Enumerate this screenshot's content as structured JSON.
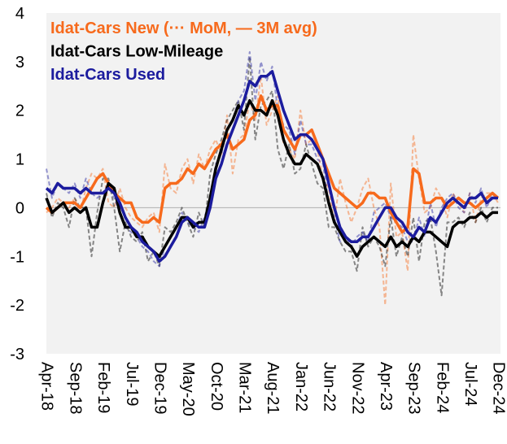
{
  "chart_data": {
    "type": "line",
    "categories": [
      "Apr-18",
      null,
      null,
      null,
      null,
      "Sep-18",
      null,
      null,
      null,
      null,
      "Feb-19",
      null,
      null,
      null,
      null,
      "Jul-19",
      null,
      null,
      null,
      null,
      "Dec-19",
      null,
      null,
      null,
      null,
      "May-20",
      null,
      null,
      null,
      null,
      "Oct-20",
      null,
      null,
      null,
      null,
      "Mar-21",
      null,
      null,
      null,
      null,
      "Aug-21",
      null,
      null,
      null,
      null,
      "Jan-22",
      null,
      null,
      null,
      null,
      "Jun-22",
      null,
      null,
      null,
      null,
      "Nov-22",
      null,
      null,
      null,
      null,
      "Apr-23",
      null,
      null,
      null,
      null,
      "Sep-23",
      null,
      null,
      null,
      null,
      "Feb-24",
      null,
      null,
      null,
      null,
      "Jul-24",
      null,
      null,
      null,
      null,
      "Dec-24"
    ],
    "series": [
      {
        "name": "Idat-Cars New (··· MoM, — 3M avg)",
        "color": "#f76a1c",
        "values": [
          0.0,
          -0.1,
          0.0,
          0.1,
          0.1,
          0.1,
          0.0,
          0.2,
          0.4,
          0.6,
          0.7,
          0.5,
          0.3,
          0.2,
          0.1,
          0.1,
          -0.2,
          -0.3,
          -0.3,
          -0.2,
          -0.3,
          0.4,
          0.5,
          0.5,
          0.6,
          0.8,
          0.7,
          0.9,
          0.8,
          1.0,
          1.2,
          1.3,
          1.5,
          1.2,
          1.3,
          1.4,
          1.8,
          1.9,
          2.3,
          2.0,
          2.1,
          2.1,
          1.6,
          1.4,
          1.2,
          1.5,
          1.5,
          1.6,
          1.3,
          1.0,
          0.7,
          0.4,
          0.3,
          0.2,
          0.1,
          0.0,
          0.1,
          0.3,
          0.3,
          0.2,
          0.2,
          -0.1,
          -0.3,
          -0.5,
          -0.4,
          0.8,
          0.7,
          0.1,
          0.1,
          0.2,
          0.2,
          0.0,
          0.1,
          0.2,
          0.1,
          0.1,
          0.0,
          0.1,
          0.2,
          0.3,
          0.2
        ],
        "mom": [
          -0.1,
          0.0,
          0.2,
          0.1,
          0.0,
          0.2,
          -0.1,
          0.4,
          0.7,
          0.6,
          0.8,
          0.1,
          0.0,
          0.4,
          0.0,
          -0.2,
          -0.3,
          -0.4,
          -0.2,
          -0.1,
          -0.5,
          0.9,
          0.4,
          0.3,
          0.8,
          1.0,
          0.5,
          1.1,
          0.8,
          1.2,
          1.4,
          1.1,
          1.9,
          0.7,
          1.4,
          1.5,
          2.2,
          1.8,
          2.7,
          1.7,
          2.0,
          2.3,
          1.3,
          1.2,
          1.0,
          2.0,
          1.3,
          1.4,
          1.2,
          0.6,
          0.4,
          -0.3,
          0.6,
          0.1,
          -0.3,
          0.0,
          0.4,
          0.6,
          0.0,
          -0.4,
          -2.0,
          0.5,
          -0.6,
          -0.5,
          -1.3,
          1.5,
          0.6,
          -0.1,
          0.0,
          0.4,
          0.2,
          -0.2,
          0.3,
          0.1,
          -0.1,
          0.3,
          -0.3,
          0.2,
          0.3,
          0.3,
          0.1
        ]
      },
      {
        "name": "Idat-Cars Low-Mileage",
        "color": "#000000",
        "values": [
          0.2,
          -0.1,
          0.0,
          0.1,
          -0.1,
          0.0,
          -0.1,
          0.0,
          -0.4,
          -0.4,
          0.1,
          0.5,
          0.4,
          -0.1,
          -0.4,
          -0.4,
          -0.6,
          -0.6,
          -0.8,
          -0.9,
          -1.0,
          -0.8,
          -0.6,
          -0.4,
          -0.2,
          -0.2,
          -0.4,
          -0.3,
          -0.3,
          0.2,
          0.8,
          1.2,
          1.6,
          1.8,
          2.1,
          1.9,
          2.2,
          2.0,
          2.0,
          1.9,
          2.2,
          1.9,
          1.4,
          1.1,
          0.9,
          0.9,
          1.1,
          1.0,
          0.9,
          0.6,
          0.1,
          -0.3,
          -0.5,
          -0.7,
          -0.8,
          -1.0,
          -0.8,
          -0.7,
          -0.6,
          -0.7,
          -0.8,
          -0.6,
          -0.8,
          -0.7,
          -0.8,
          -0.6,
          -0.7,
          -0.5,
          -0.5,
          -0.6,
          -0.7,
          -0.8,
          -0.4,
          -0.3,
          -0.3,
          -0.2,
          -0.2,
          -0.1,
          -0.2,
          -0.1,
          -0.1
        ],
        "mom": [
          0.3,
          -0.2,
          0.1,
          0.0,
          -0.4,
          0.2,
          0.0,
          0.0,
          -1.0,
          -0.1,
          0.6,
          0.6,
          0.0,
          -0.9,
          -0.3,
          -0.6,
          -0.7,
          -0.5,
          -1.1,
          -0.9,
          -1.2,
          -0.4,
          -0.5,
          -0.3,
          0.0,
          -0.3,
          -0.6,
          -0.1,
          -0.4,
          0.7,
          1.1,
          1.4,
          1.8,
          2.0,
          2.2,
          1.6,
          3.1,
          1.4,
          2.1,
          2.2,
          2.4,
          1.2,
          0.8,
          1.3,
          0.7,
          0.8,
          1.3,
          0.9,
          0.5,
          0.4,
          -0.4,
          -0.4,
          -0.7,
          -0.9,
          -0.9,
          -1.3,
          -0.4,
          -0.8,
          -0.6,
          -0.8,
          -1.2,
          -0.2,
          -1.0,
          -0.6,
          -1.0,
          -0.2,
          -1.1,
          -0.3,
          -0.2,
          -0.9,
          -1.8,
          -0.3,
          -0.3,
          -0.2,
          -0.4,
          -0.1,
          -0.3,
          0.0,
          -0.3,
          0.0,
          0.0
        ]
      },
      {
        "name": "Idat-Cars Used",
        "color": "#1c1c9e",
        "values": [
          0.4,
          0.3,
          0.5,
          0.4,
          0.4,
          0.4,
          0.3,
          0.4,
          0.3,
          0.3,
          0.3,
          0.4,
          0.3,
          0.1,
          -0.2,
          -0.4,
          -0.5,
          -0.7,
          -0.8,
          -0.9,
          -1.1,
          -1.0,
          -0.8,
          -0.6,
          -0.3,
          -0.2,
          -0.3,
          -0.4,
          -0.4,
          0.0,
          0.6,
          0.9,
          1.3,
          1.6,
          1.9,
          2.2,
          2.6,
          2.5,
          2.7,
          2.7,
          2.8,
          2.4,
          2.0,
          1.7,
          1.4,
          1.5,
          1.5,
          1.4,
          1.2,
          1.0,
          0.5,
          0.0,
          -0.4,
          -0.6,
          -0.7,
          -0.7,
          -0.6,
          -0.6,
          -0.4,
          -0.2,
          0.0,
          0.0,
          -0.2,
          -0.3,
          -0.5,
          -0.6,
          -0.4,
          -0.5,
          -0.2,
          -0.3,
          -0.1,
          0.1,
          0.2,
          0.1,
          0.0,
          0.2,
          0.2,
          0.3,
          0.1,
          0.2,
          0.2
        ],
        "mom": [
          0.8,
          0.2,
          0.5,
          0.4,
          0.3,
          0.5,
          0.2,
          0.6,
          0.3,
          0.2,
          0.3,
          0.5,
          0.2,
          -0.1,
          -0.4,
          -0.5,
          -0.6,
          -0.8,
          -0.9,
          -1.1,
          -1.2,
          -0.8,
          -0.6,
          -0.4,
          -0.1,
          -0.3,
          -0.4,
          -0.5,
          -0.2,
          0.2,
          0.9,
          1.1,
          1.6,
          1.8,
          2.2,
          2.4,
          3.2,
          2.2,
          3.0,
          2.6,
          2.9,
          2.0,
          1.7,
          1.6,
          1.1,
          1.8,
          1.3,
          1.3,
          1.0,
          0.9,
          0.1,
          -0.2,
          -0.7,
          -0.6,
          -0.8,
          -0.6,
          -0.5,
          -0.7,
          -0.1,
          0.0,
          0.1,
          -0.2,
          -0.3,
          -0.4,
          -0.7,
          -0.7,
          -0.2,
          -0.6,
          0.1,
          -0.4,
          0.0,
          0.2,
          0.3,
          0.0,
          -0.1,
          0.3,
          0.1,
          0.4,
          0.0,
          0.3,
          0.2
        ]
      }
    ],
    "ylim": [
      -3,
      4
    ],
    "yticks": [
      -3,
      -2,
      -1,
      0,
      1,
      2,
      3,
      4
    ]
  }
}
